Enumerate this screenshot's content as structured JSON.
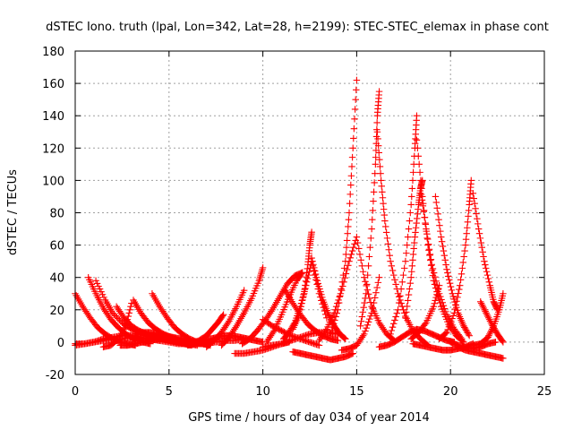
{
  "chart_data": {
    "type": "scatter",
    "title": "dSTEC Iono. truth (lpal, Lon=342, Lat=28, h=2199): STEC-STEC_elemax in phase cont",
    "xlabel": "GPS time / hours of day 034 of year 2014",
    "ylabel": "dSTEC  / TECUs",
    "xlim": [
      0,
      25
    ],
    "ylim": [
      -20,
      180
    ],
    "xticks": [
      0,
      5,
      10,
      15,
      20,
      25
    ],
    "yticks": [
      -20,
      0,
      20,
      40,
      60,
      80,
      100,
      120,
      140,
      160,
      180
    ],
    "grid": true,
    "legend": "none",
    "marker": "plus",
    "color": "#ff0000",
    "series": [
      {
        "x": [
          0.0,
          0.4,
          0.8,
          1.2,
          1.6,
          2.0,
          2.4,
          2.8,
          3.2
        ],
        "y": [
          30,
          22,
          15,
          9,
          5,
          2,
          0,
          -1,
          -2
        ]
      },
      {
        "x": [
          0.0,
          0.5,
          1.0,
          1.5,
          2.0,
          2.5,
          3.0,
          3.5,
          4.0,
          4.5,
          5.0,
          5.5,
          6.0
        ],
        "y": [
          -1,
          -1,
          0,
          1,
          2,
          2,
          3,
          2,
          2,
          1,
          0,
          -1,
          -1
        ]
      },
      {
        "x": [
          0.7,
          1.1,
          1.5,
          1.9,
          2.3,
          2.7,
          3.1,
          3.6,
          4.0
        ],
        "y": [
          40,
          30,
          21,
          14,
          9,
          5,
          2,
          0,
          -1
        ]
      },
      {
        "x": [
          1.1,
          1.6,
          2.0,
          2.5,
          3.0,
          3.5,
          4.0,
          4.5,
          5.0,
          5.5,
          6.0,
          6.5
        ],
        "y": [
          38,
          26,
          18,
          12,
          8,
          5,
          3,
          2,
          1,
          0,
          -1,
          -2
        ]
      },
      {
        "x": [
          0.0,
          0.5,
          1.0,
          1.5,
          2.0,
          2.5,
          3.0,
          3.5,
          4.0,
          4.5
        ],
        "y": [
          -2,
          -1,
          0,
          2,
          3,
          4,
          4,
          3,
          2,
          1
        ]
      },
      {
        "x": [
          2.2,
          2.6,
          3.0,
          3.4,
          3.8,
          4.2,
          4.6,
          5.0,
          5.4,
          5.8,
          6.2
        ],
        "y": [
          22,
          15,
          10,
          7,
          5,
          3,
          2,
          1,
          0,
          -1,
          -2
        ]
      },
      {
        "x": [
          1.5,
          1.9,
          2.3,
          2.7,
          3.0
        ],
        "y": [
          -3,
          -2,
          2,
          10,
          24
        ]
      },
      {
        "x": [
          3.1,
          3.5,
          3.9,
          4.3,
          4.7,
          5.1,
          5.5,
          5.9,
          6.3
        ],
        "y": [
          26,
          18,
          12,
          8,
          5,
          3,
          1,
          0,
          -1
        ]
      },
      {
        "x": [
          2.4,
          2.8,
          3.2,
          3.6,
          4.0,
          4.4,
          4.8,
          5.2,
          5.6,
          6.0,
          6.4,
          6.8,
          7.2
        ],
        "y": [
          -2,
          -2,
          -1,
          0,
          1,
          2,
          2,
          2,
          1,
          0,
          -1,
          -1,
          -2
        ]
      },
      {
        "x": [
          4.1,
          4.5,
          4.9,
          5.3,
          5.7,
          6.1,
          6.5,
          6.9
        ],
        "y": [
          30,
          22,
          15,
          9,
          5,
          2,
          0,
          -1
        ]
      },
      {
        "x": [
          3.2,
          3.6,
          4.0,
          4.4,
          4.8,
          5.2,
          5.6,
          6.0,
          6.4,
          6.8,
          7.2
        ],
        "y": [
          5,
          6,
          6,
          5,
          4,
          3,
          2,
          1,
          0,
          -1,
          -1
        ]
      },
      {
        "x": [
          5.0,
          5.5,
          6.0,
          6.5,
          7.0,
          7.5,
          8.0,
          8.5,
          9.0
        ],
        "y": [
          1,
          0,
          -1,
          -1,
          0,
          0,
          1,
          1,
          2
        ]
      },
      {
        "x": [
          6.0,
          6.4,
          6.8,
          7.2,
          7.6,
          8.0,
          8.4,
          8.8,
          9.2,
          9.6,
          10.0
        ],
        "y": [
          -2,
          -1,
          0,
          2,
          3,
          4,
          4,
          3,
          2,
          1,
          0
        ]
      },
      {
        "x": [
          6.2,
          6.6,
          7.0,
          7.3,
          7.6,
          7.9
        ],
        "y": [
          -1,
          1,
          4,
          8,
          12,
          17
        ]
      },
      {
        "x": [
          7.0,
          7.4,
          7.8,
          8.2,
          8.6,
          9.0
        ],
        "y": [
          -3,
          1,
          6,
          13,
          22,
          32
        ]
      },
      {
        "x": [
          7.8,
          8.2,
          8.6,
          9.0,
          9.4,
          9.8,
          10.0
        ],
        "y": [
          -2,
          3,
          10,
          18,
          27,
          38,
          46
        ]
      },
      {
        "x": [
          8.5,
          9.0,
          9.5,
          10.0,
          10.5,
          11.0,
          11.4
        ],
        "y": [
          -7,
          -7,
          -6,
          -5,
          -3,
          -1,
          0
        ]
      },
      {
        "x": [
          8.9,
          9.3,
          9.7,
          10.1,
          10.5,
          10.9,
          11.3,
          11.7,
          12.1
        ],
        "y": [
          -1,
          2,
          7,
          13,
          20,
          28,
          36,
          41,
          43
        ]
      },
      {
        "x": [
          10.0,
          10.5,
          11.0,
          11.5,
          12.0,
          12.5,
          13.0,
          13.5,
          14.0
        ],
        "y": [
          -3,
          -2,
          -1,
          1,
          3,
          5,
          6,
          6,
          5
        ]
      },
      {
        "x": [
          10.2,
          10.6,
          11.0,
          11.4,
          11.8,
          12.1
        ],
        "y": [
          0,
          7,
          17,
          28,
          38,
          43
        ]
      },
      {
        "x": [
          10.0,
          10.5,
          11.0,
          11.5,
          12.0,
          12.5,
          13.0
        ],
        "y": [
          14,
          10,
          7,
          4,
          2,
          0,
          -2
        ]
      },
      {
        "x": [
          11.1,
          11.4,
          11.7,
          12.0,
          12.3,
          12.6,
          13.0,
          13.4
        ],
        "y": [
          2,
          6,
          12,
          22,
          35,
          50,
          30,
          15
        ]
      },
      {
        "x": [
          11.2,
          11.6,
          12.0,
          12.4,
          12.8,
          13.2,
          13.6,
          14.0
        ],
        "y": [
          32,
          24,
          17,
          11,
          7,
          4,
          2,
          1
        ]
      },
      {
        "x": [
          11.6,
          11.9,
          12.2,
          12.4,
          12.5,
          12.6
        ],
        "y": [
          8,
          16,
          30,
          48,
          60,
          68
        ]
      },
      {
        "x": [
          12.6,
          12.9,
          13.2,
          13.5,
          13.8,
          14.1,
          14.4
        ],
        "y": [
          52,
          38,
          26,
          17,
          10,
          5,
          2
        ]
      },
      {
        "x": [
          11.6,
          12.0,
          12.4,
          12.8,
          13.2,
          13.6,
          14.0,
          14.4,
          14.8
        ],
        "y": [
          -6,
          -7,
          -8,
          -9,
          -10,
          -11,
          -10,
          -9,
          -7
        ]
      },
      {
        "x": [
          13.0,
          13.4,
          13.8,
          14.2,
          14.6,
          15.0,
          15.4,
          15.8,
          16.2,
          16.6,
          17.0
        ],
        "y": [
          1,
          8,
          18,
          32,
          50,
          65,
          40,
          22,
          12,
          5,
          1
        ]
      },
      {
        "x": [
          13.6,
          14.0,
          14.4,
          14.6,
          14.8,
          15.0
        ],
        "y": [
          5,
          20,
          50,
          80,
          120,
          162
        ]
      },
      {
        "x": [
          14.2,
          14.6,
          15.0,
          15.4,
          15.8,
          16.2
        ],
        "y": [
          -5,
          -4,
          -2,
          5,
          18,
          40
        ]
      },
      {
        "x": [
          15.2,
          15.5,
          15.8,
          16.0,
          16.1,
          16.2
        ],
        "y": [
          10,
          30,
          70,
          110,
          140,
          155
        ]
      },
      {
        "x": [
          16.1,
          16.3,
          16.5,
          16.8,
          17.2,
          17.6,
          18.0,
          18.4,
          18.8
        ],
        "y": [
          130,
          100,
          75,
          50,
          30,
          16,
          7,
          2,
          -2
        ]
      },
      {
        "x": [
          16.2,
          16.6,
          17.0,
          17.4,
          17.8,
          18.2,
          18.6,
          19.0,
          19.4,
          19.8,
          20.2
        ],
        "y": [
          -3,
          -2,
          0,
          3,
          6,
          8,
          7,
          5,
          3,
          1,
          0
        ]
      },
      {
        "x": [
          16.8,
          17.2,
          17.6,
          17.9,
          18.1,
          18.2
        ],
        "y": [
          5,
          20,
          50,
          85,
          120,
          140
        ]
      },
      {
        "x": [
          18.2,
          18.5,
          18.8,
          19.1,
          19.5,
          19.9,
          20.3,
          20.7
        ],
        "y": [
          125,
          90,
          60,
          38,
          22,
          11,
          4,
          0
        ]
      },
      {
        "x": [
          17.6,
          17.9,
          18.1,
          18.3,
          18.4,
          18.5
        ],
        "y": [
          15,
          40,
          65,
          85,
          95,
          100
        ]
      },
      {
        "x": [
          18.4,
          18.7,
          19.0,
          19.4,
          19.8,
          20.2,
          20.6
        ],
        "y": [
          95,
          70,
          48,
          30,
          17,
          8,
          2
        ]
      },
      {
        "x": [
          18.0,
          18.4,
          18.8,
          19.2,
          19.6,
          20.0,
          20.4,
          20.8,
          21.2
        ],
        "y": [
          -1,
          -2,
          -3,
          -4,
          -5,
          -5,
          -4,
          -3,
          -1
        ]
      },
      {
        "x": [
          19.2,
          19.5,
          19.8,
          20.1,
          20.4,
          20.7,
          21.0
        ],
        "y": [
          90,
          65,
          45,
          30,
          18,
          10,
          4
        ]
      },
      {
        "x": [
          17.9,
          18.3,
          18.7,
          19.1,
          19.4
        ],
        "y": [
          2,
          6,
          12,
          22,
          35
        ]
      },
      {
        "x": [
          19.4,
          19.8,
          20.2,
          20.5,
          20.8,
          21.0,
          21.1
        ],
        "y": [
          2,
          6,
          18,
          35,
          60,
          85,
          100
        ]
      },
      {
        "x": [
          21.2,
          21.5,
          21.8,
          22.1,
          22.3,
          22.5
        ],
        "y": [
          92,
          70,
          50,
          35,
          25,
          20
        ]
      },
      {
        "x": [
          20.4,
          20.8,
          21.2,
          21.6,
          22.0,
          22.4,
          22.8
        ],
        "y": [
          -3,
          -5,
          -6,
          -7,
          -8,
          -9,
          -10
        ]
      },
      {
        "x": [
          20.0,
          20.4,
          20.8,
          21.2,
          21.6,
          22.0,
          22.4
        ],
        "y": [
          0,
          -2,
          -3,
          -4,
          -3,
          -1,
          0
        ]
      },
      {
        "x": [
          21.2,
          21.6,
          22.0,
          22.3,
          22.6,
          22.8
        ],
        "y": [
          -2,
          -1,
          3,
          10,
          20,
          30
        ]
      },
      {
        "x": [
          21.6,
          21.9,
          22.2,
          22.5,
          22.8
        ],
        "y": [
          25,
          18,
          11,
          5,
          0
        ]
      }
    ]
  }
}
